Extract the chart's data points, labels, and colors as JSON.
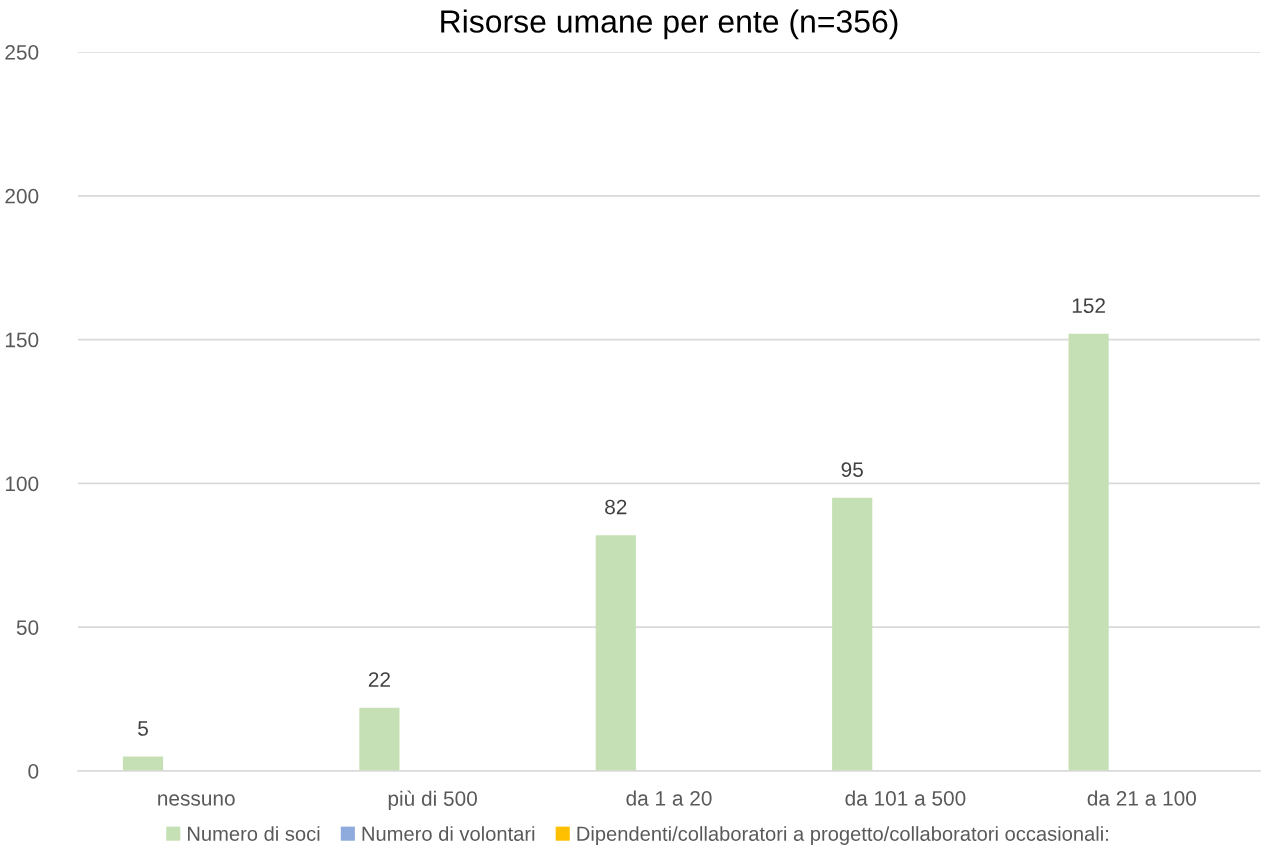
{
  "chart_data": {
    "type": "bar",
    "title": "Risorse umane per ente (n=356)",
    "categories": [
      "nessuno",
      "più di 500",
      "da 1 a 20",
      "da 101 a 500",
      "da 21 a 100"
    ],
    "series": [
      {
        "name": "Numero di soci",
        "color": "#c5e0b4",
        "values": [
          5,
          22,
          82,
          95,
          152
        ]
      },
      {
        "name": "Numero di volontari",
        "color": "#8faadc",
        "values": [
          null,
          null,
          null,
          null,
          null
        ]
      },
      {
        "name": "Dipendenti/collaboratori a progetto/collaboratori occasionali:",
        "color": "#ffc000",
        "values": [
          null,
          null,
          null,
          null,
          null
        ]
      }
    ],
    "ylim": [
      0,
      250
    ],
    "yticks": [
      0,
      50,
      100,
      150,
      200,
      250
    ],
    "grid": "y",
    "legend": "bottom",
    "data_labels": true
  }
}
